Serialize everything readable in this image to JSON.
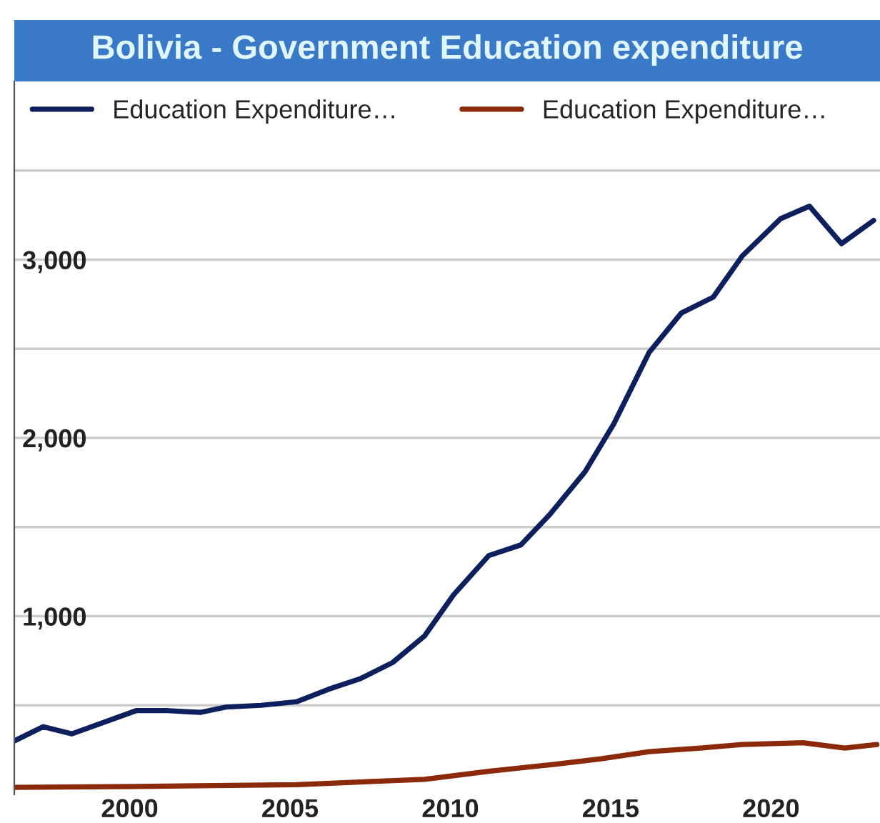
{
  "chart_data": {
    "type": "line",
    "title": "Bolivia - Government Education expenditure",
    "x": [
      1996.4,
      1997.3,
      1998.2,
      2000.2,
      2001.2,
      2002.2,
      2003.0,
      2004.1,
      2005.2,
      2006.2,
      2007.2,
      2008.2,
      2009.2,
      2010.1,
      2011.2,
      2012.2,
      2013.1,
      2014.2,
      2015.1,
      2016.2,
      2017.2,
      2018.2,
      2019.1,
      2020.3,
      2021.2,
      2022.2,
      2023.2
    ],
    "series": [
      {
        "name": "Education Expenditure…",
        "color": "#0d1f5c",
        "values": [
          300,
          380,
          340,
          470,
          470,
          460,
          490,
          500,
          520,
          590,
          650,
          740,
          890,
          1120,
          1340,
          1400,
          1570,
          1810,
          2080,
          2480,
          2700,
          2790,
          3020,
          3230,
          3300,
          3090,
          3220
        ]
      },
      {
        "name": "Education Expenditure…",
        "color": "#8b2a0a",
        "x": [
          1996.4,
          2000.2,
          2005.2,
          2009.2,
          2011.2,
          2013.3,
          2014.7,
          2016.2,
          2017.8,
          2019.1,
          2021.0,
          2022.3,
          2023.3
        ],
        "values": [
          40,
          45,
          55,
          85,
          130,
          170,
          200,
          240,
          260,
          280,
          290,
          260,
          280
        ]
      }
    ],
    "xlim": [
      1996.4,
      2023.4
    ],
    "xticks": [
      2000,
      2005,
      2010,
      2015,
      2020
    ],
    "ylim": [
      0,
      4000
    ],
    "yticks": [
      {
        "value": 500,
        "label": null
      },
      {
        "value": 1000,
        "label": "1,000"
      },
      {
        "value": 1500,
        "label": null
      },
      {
        "value": 2000,
        "label": "2,000"
      },
      {
        "value": 2500,
        "label": null
      },
      {
        "value": 3000,
        "label": "3,000"
      },
      {
        "value": 3500,
        "label": null
      }
    ],
    "grid": "y",
    "legend": "top left",
    "marker": "none",
    "line_style": "solid"
  }
}
